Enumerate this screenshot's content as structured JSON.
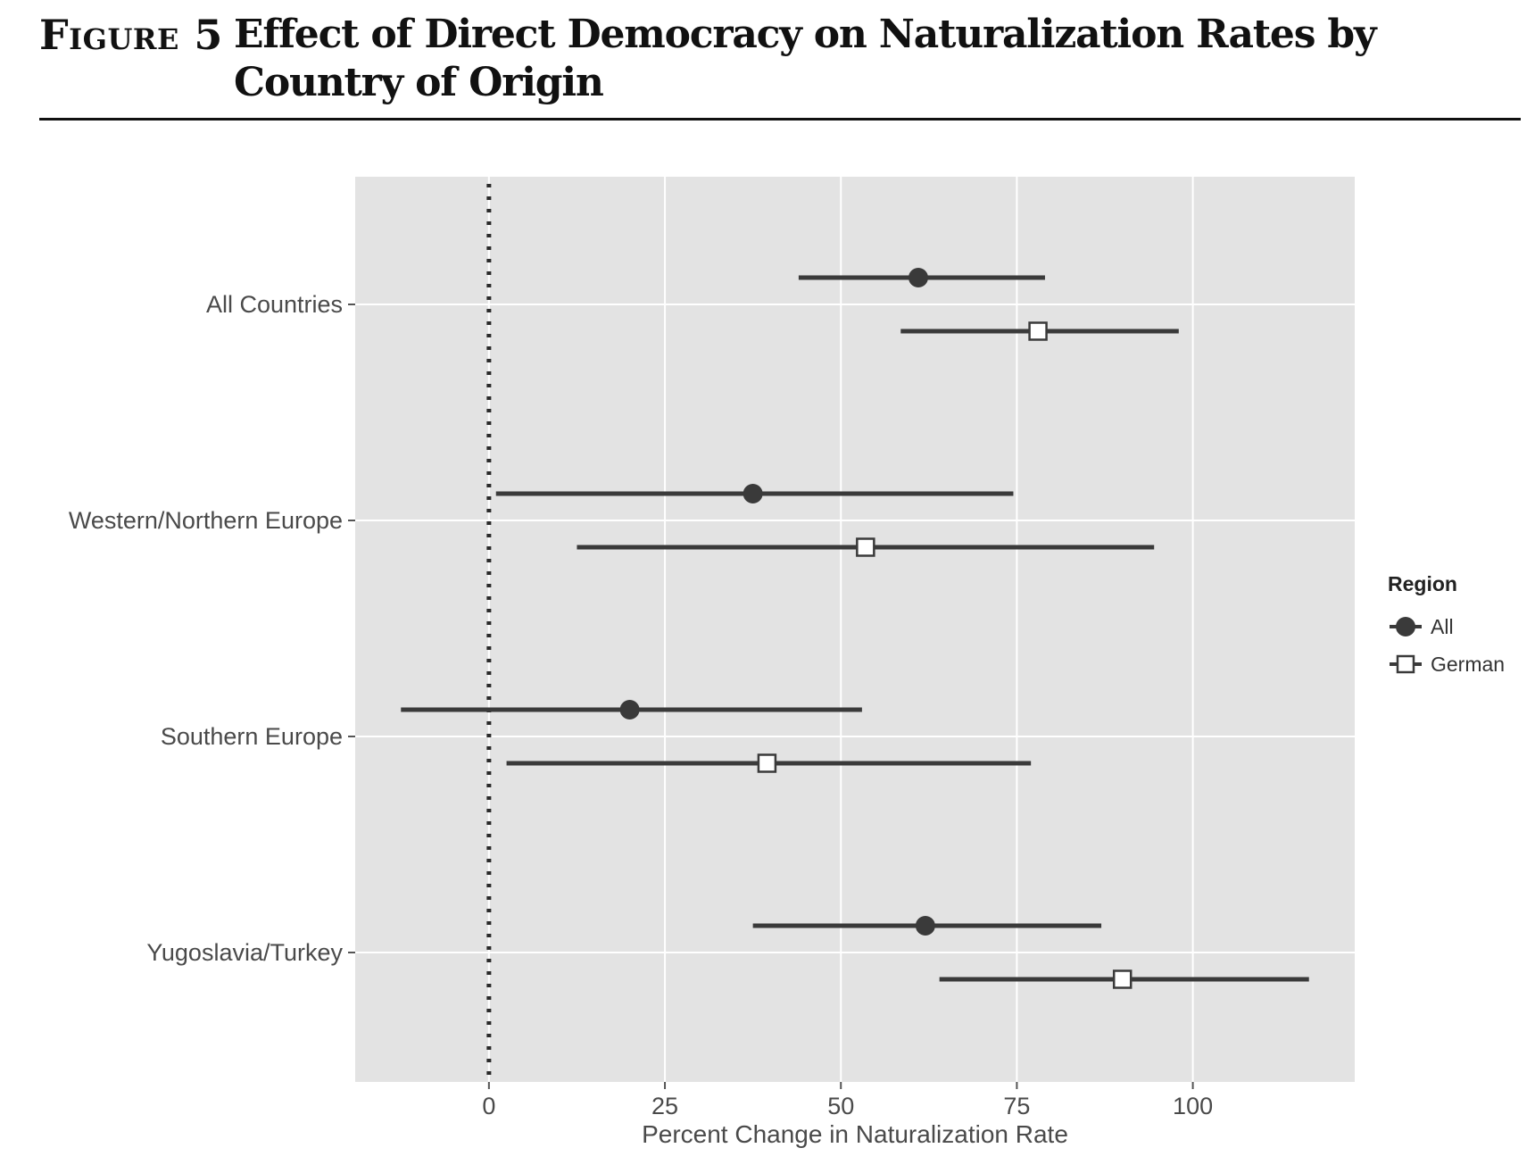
{
  "figure": {
    "label": "Figure 5",
    "title": "Effect of Direct Democracy on Naturalization Rates by Country of Origin"
  },
  "chart_data": {
    "type": "scatter",
    "subtype": "dot-and-whisker",
    "title": "",
    "xlabel": "Percent Change in Naturalization Rate",
    "ylabel": "",
    "xlim": [
      -19,
      123
    ],
    "xticks": [
      0,
      25,
      50,
      75,
      100
    ],
    "reference_line": {
      "x": 0,
      "style": "dotted"
    },
    "grid": true,
    "categories": [
      "All Countries",
      "Western/Northern Europe",
      "Southern Europe",
      "Yugoslavia/Turkey"
    ],
    "legend": {
      "title": "Region",
      "position": "right",
      "entries": [
        "All",
        "German"
      ]
    },
    "series": [
      {
        "name": "All",
        "marker": "filled-circle",
        "color": "#3a3a3a",
        "points": [
          {
            "category": "All Countries",
            "estimate": 61,
            "low": 44,
            "high": 79
          },
          {
            "category": "Western/Northern Europe",
            "estimate": 37.5,
            "low": 1,
            "high": 74.5
          },
          {
            "category": "Southern Europe",
            "estimate": 20,
            "low": -12.5,
            "high": 53
          },
          {
            "category": "Yugoslavia/Turkey",
            "estimate": 62,
            "low": 37.5,
            "high": 87
          }
        ]
      },
      {
        "name": "German",
        "marker": "open-square",
        "color": "#3a3a3a",
        "points": [
          {
            "category": "All Countries",
            "estimate": 78,
            "low": 58.5,
            "high": 98
          },
          {
            "category": "Western/Northern Europe",
            "estimate": 53.5,
            "low": 12.5,
            "high": 94.5
          },
          {
            "category": "Southern Europe",
            "estimate": 39.5,
            "low": 2.5,
            "high": 77
          },
          {
            "category": "Yugoslavia/Turkey",
            "estimate": 90,
            "low": 64,
            "high": 116.5
          }
        ]
      }
    ],
    "colors": {
      "panel_background": "#e3e3e3",
      "grid": "#ffffff",
      "ink": "#3a3a3a",
      "axis_text": "#4a4a4a"
    }
  }
}
